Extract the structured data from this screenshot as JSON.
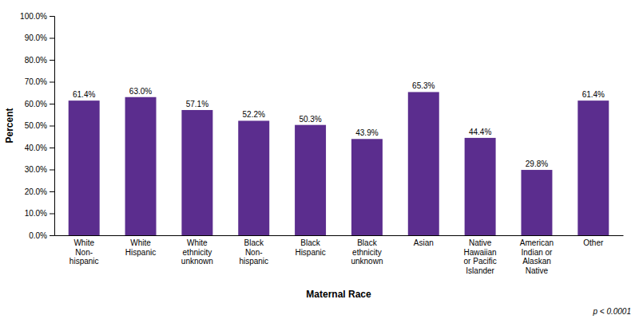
{
  "chart_data": {
    "type": "bar",
    "categories": [
      "White\nNon-\nhispanic",
      "White\nHispanic",
      "White\nethnicity\nunknown",
      "Black\nNon-\nhispanic",
      "Black\nHispanic",
      "Black\nethnicity\nunknown",
      "Asian",
      "Native\nHawaiian\nor Pacific\nIslander",
      "American\nIndian or\nAlaskan\nNative",
      "Other"
    ],
    "values": [
      61.4,
      63.0,
      57.1,
      52.2,
      50.3,
      43.9,
      65.3,
      44.4,
      29.8,
      61.4
    ],
    "value_labels": [
      "61.4%",
      "63.0%",
      "57.1%",
      "52.2%",
      "50.3%",
      "43.9%",
      "65.3%",
      "44.4%",
      "29.8%",
      "61.4%"
    ],
    "data_labels": true,
    "color": "#5b2d8e",
    "xlabel": "Maternal Race",
    "ylabel": "Percent",
    "ylim": [
      0,
      100
    ],
    "yticks": [
      {
        "value": 0,
        "label": "0.0%"
      },
      {
        "value": 10,
        "label": "10.0%"
      },
      {
        "value": 20,
        "label": "20.0%"
      },
      {
        "value": 30,
        "label": "30.0%"
      },
      {
        "value": 40,
        "label": "40.0%"
      },
      {
        "value": 50,
        "label": "50.0%"
      },
      {
        "value": 60,
        "label": "60.0%"
      },
      {
        "value": 70,
        "label": "70.0%"
      },
      {
        "value": 80,
        "label": "80.0%"
      },
      {
        "value": 90,
        "label": "90.0%"
      },
      {
        "value": 100,
        "label": "100.0%"
      }
    ],
    "grid": false,
    "annotation": "p < 0.0001"
  }
}
